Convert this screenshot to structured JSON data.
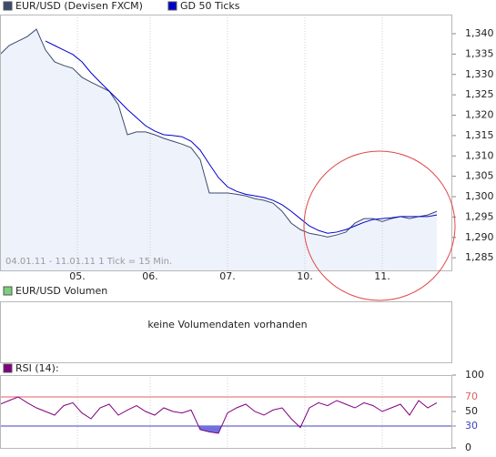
{
  "chart_data": [
    {
      "type": "line",
      "annotation": "04.01.11 - 11.01.11   1 Tick = 15 Min.",
      "area_color": "#eef2fb",
      "series": [
        {
          "name": "EUR/USD (Devisen FXCM)",
          "color": "#3c4a6e",
          "values": [
            1.3349,
            1.3371,
            1.3382,
            1.3393,
            1.3411,
            1.336,
            1.3331,
            1.3322,
            1.3315,
            1.3293,
            1.3281,
            1.327,
            1.3259,
            1.3226,
            1.3152,
            1.3159,
            1.3159,
            1.3152,
            1.3143,
            1.3136,
            1.3129,
            1.312,
            1.3091,
            1.3009,
            1.3009,
            1.3009,
            1.3006,
            1.3002,
            1.2995,
            1.2991,
            1.2984,
            1.2964,
            1.2935,
            1.2919,
            1.291,
            1.2906,
            1.2901,
            1.2906,
            1.2913,
            1.2935,
            1.2946,
            1.2946,
            1.2939,
            1.2946,
            1.2951,
            1.2946,
            1.2951,
            1.2955,
            1.2964
          ]
        },
        {
          "name": "GD 50 Ticks",
          "color": "#0000cc",
          "values": [
            null,
            null,
            null,
            null,
            null,
            1.3382,
            1.3371,
            1.336,
            1.3349,
            1.3331,
            1.3304,
            1.3281,
            1.3259,
            1.3237,
            1.3214,
            1.3194,
            1.3174,
            1.3161,
            1.3152,
            1.315,
            1.3147,
            1.3136,
            1.3114,
            1.308,
            1.3047,
            1.3024,
            1.3013,
            1.3006,
            1.3002,
            1.2998,
            1.2991,
            1.298,
            1.2964,
            1.2946,
            1.2928,
            1.2917,
            1.291,
            1.2913,
            1.2919,
            1.2928,
            1.2937,
            1.2944,
            1.2946,
            1.2948,
            1.2951,
            1.2951,
            1.2951,
            1.2951,
            1.2955
          ]
        }
      ],
      "xlim": [
        0,
        49.7
      ],
      "xticks": [
        {
          "value": 8.5,
          "label": "05."
        },
        {
          "value": 16.5,
          "label": "06."
        },
        {
          "value": 25,
          "label": "07."
        },
        {
          "value": 33.5,
          "label": "10."
        },
        {
          "value": 42,
          "label": "11."
        }
      ],
      "ylim": [
        1.2819,
        1.3447
      ],
      "yticks": [
        {
          "value": 1.285,
          "label": "1,285"
        },
        {
          "value": 1.29,
          "label": "1,290"
        },
        {
          "value": 1.295,
          "label": "1,295"
        },
        {
          "value": 1.3,
          "label": "1,300"
        },
        {
          "value": 1.305,
          "label": "1,305"
        },
        {
          "value": 1.31,
          "label": "1,310"
        },
        {
          "value": 1.315,
          "label": "1,315"
        },
        {
          "value": 1.32,
          "label": "1,320"
        },
        {
          "value": 1.325,
          "label": "1,325"
        },
        {
          "value": 1.33,
          "label": "1,330"
        },
        {
          "value": 1.335,
          "label": "1,335"
        },
        {
          "value": 1.34,
          "label": "1,340"
        }
      ]
    },
    {
      "type": "line",
      "series": [
        {
          "name": "RSI (14):",
          "color": "#800080",
          "values": [
            60,
            65,
            70,
            62,
            55,
            50,
            45,
            58,
            62,
            48,
            40,
            55,
            60,
            45,
            52,
            58,
            50,
            45,
            55,
            50,
            48,
            52,
            25,
            22,
            20,
            48,
            55,
            60,
            50,
            45,
            52,
            55,
            40,
            28,
            55,
            62,
            58,
            65,
            60,
            55,
            62,
            58,
            50,
            55,
            60,
            45,
            65,
            55,
            62
          ]
        }
      ],
      "fill_below": {
        "value": 30,
        "color": "#7070e0"
      },
      "hlines": [
        {
          "value": 70,
          "color": "#e06060"
        },
        {
          "value": 30,
          "color": "#4040c0"
        }
      ],
      "xlim": [
        0,
        49.7
      ],
      "xticks": [
        {
          "value": 8.5,
          "label": "05."
        },
        {
          "value": 16.5,
          "label": "06."
        },
        {
          "value": 25,
          "label": "07."
        },
        {
          "value": 33.5,
          "label": "10."
        },
        {
          "value": 42,
          "label": "11."
        }
      ],
      "ylim": [
        0,
        100
      ],
      "yticks": [
        0,
        30,
        50,
        70,
        100
      ]
    }
  ],
  "volume_panel": {
    "legend": "EUR/USD Volumen",
    "legend_color": "#7ccf7c",
    "message": "keine Volumendaten vorhanden"
  }
}
